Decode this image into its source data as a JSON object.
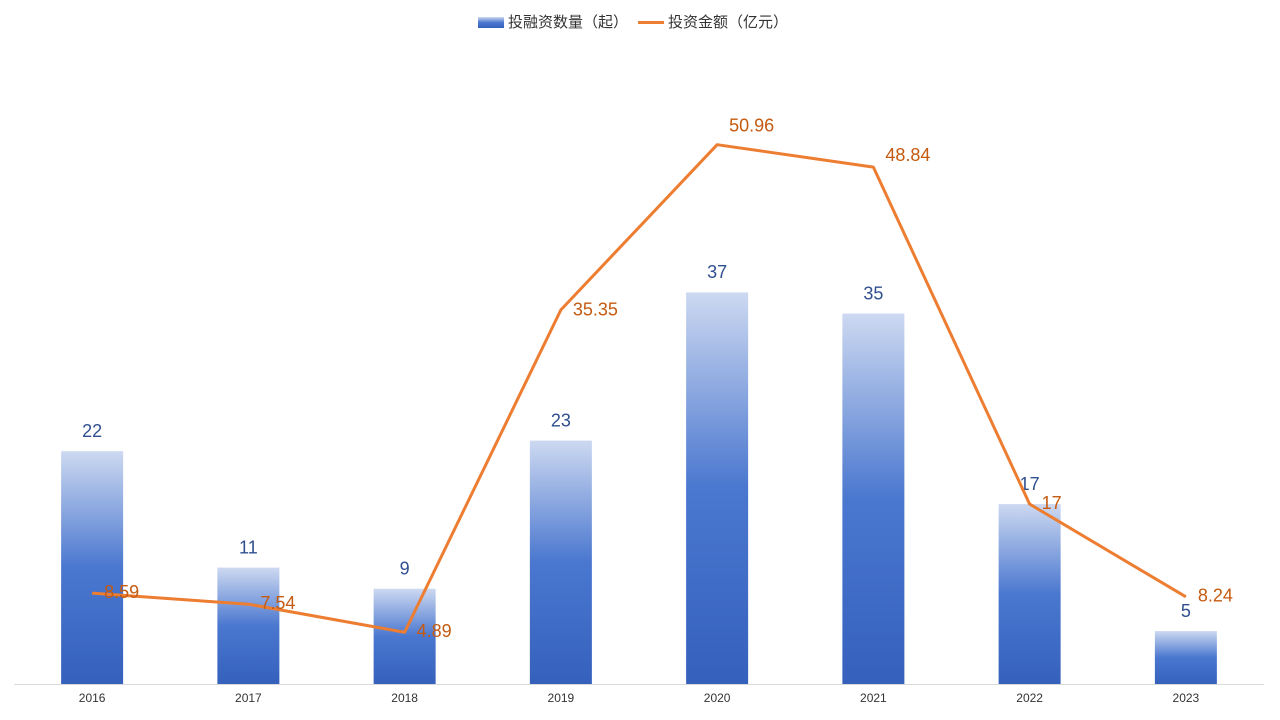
{
  "chart_data": {
    "type": "bar",
    "categories": [
      "2016",
      "2017",
      "2018",
      "2019",
      "2020",
      "2021",
      "2022",
      "2023"
    ],
    "series": [
      {
        "name": "投融资数量（起）",
        "type": "bar",
        "color": "#3a6bc9",
        "values": [
          22,
          11,
          9,
          23,
          37,
          35,
          17,
          5
        ]
      },
      {
        "name": "投资金额（亿元）",
        "type": "line",
        "axis": "y2",
        "color": "#ed7d31",
        "values": [
          8.59,
          7.54,
          4.89,
          35.35,
          50.96,
          48.84,
          17,
          8.24
        ]
      }
    ],
    "ylim": [
      0,
      60
    ],
    "y2lim": [
      0,
      60
    ],
    "legend": "top"
  }
}
